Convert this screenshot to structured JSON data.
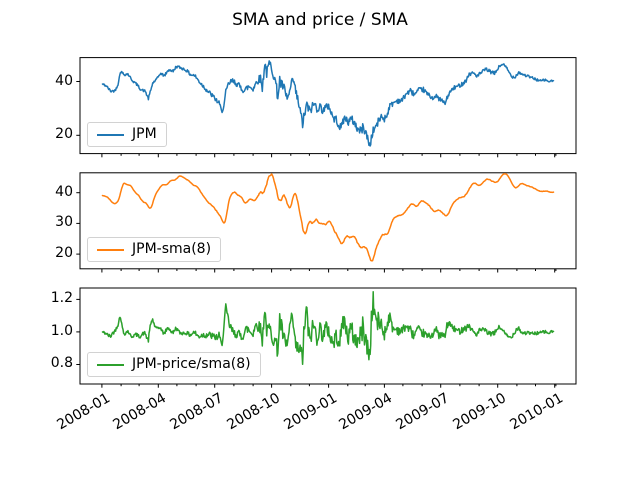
{
  "chart_data": {
    "type": "line",
    "title": "SMA and price / SMA",
    "xlabel": "",
    "ylabel": "",
    "grid": false,
    "legend_position": "lower left",
    "x_unit": "days since 2008-01-01, daily stock series 2008-01-02 to 2009-12-31",
    "xlim": [
      -35.4,
      765.4
    ],
    "xticks": [
      {
        "label": "2008-01",
        "day": 0
      },
      {
        "label": "2008-04",
        "day": 91
      },
      {
        "label": "2008-07",
        "day": 182
      },
      {
        "label": "2008-10",
        "day": 274
      },
      {
        "label": "2009-01",
        "day": 366
      },
      {
        "label": "2009-04",
        "day": 456
      },
      {
        "label": "2009-07",
        "day": 547
      },
      {
        "label": "2009-10",
        "day": 639
      },
      {
        "label": "2010-01",
        "day": 731
      }
    ],
    "minor_xtick_days": [
      31,
      60,
      121,
      152,
      213,
      244,
      305,
      335,
      397,
      425,
      486,
      517,
      578,
      609,
      670,
      700,
      733
    ],
    "subplots": [
      {
        "legend": "JPM",
        "color": "#1f77b4",
        "source": "price",
        "yticks": [
          "20",
          "40"
        ],
        "ylim": [
          13.2,
          48.9
        ],
        "price_waypoints": [
          [
            1,
            39.0
          ],
          [
            7,
            38.4
          ],
          [
            14,
            36.4
          ],
          [
            21,
            36.6
          ],
          [
            26,
            39.0
          ],
          [
            30,
            43.8
          ],
          [
            36,
            42.6
          ],
          [
            42,
            42.8
          ],
          [
            49,
            40.4
          ],
          [
            56,
            39.0
          ],
          [
            63,
            37.0
          ],
          [
            70,
            36.4
          ],
          [
            75,
            33.6
          ],
          [
            82,
            39.4
          ],
          [
            89,
            41.0
          ],
          [
            94,
            43.0
          ],
          [
            101,
            42.2
          ],
          [
            108,
            44.4
          ],
          [
            115,
            43.8
          ],
          [
            120,
            45.6
          ],
          [
            129,
            45.0
          ],
          [
            136,
            44.2
          ],
          [
            143,
            42.6
          ],
          [
            150,
            42.2
          ],
          [
            157,
            40.0
          ],
          [
            164,
            38.2
          ],
          [
            171,
            36.4
          ],
          [
            178,
            34.8
          ],
          [
            185,
            33.0
          ],
          [
            190,
            31.6
          ],
          [
            193,
            28.8
          ],
          [
            197,
            31.0
          ],
          [
            200,
            36.0
          ],
          [
            204,
            38.8
          ],
          [
            209,
            40.2
          ],
          [
            216,
            39.6
          ],
          [
            223,
            38.0
          ],
          [
            230,
            36.6
          ],
          [
            237,
            38.2
          ],
          [
            244,
            37.4
          ],
          [
            251,
            40.4
          ],
          [
            256,
            41.2
          ],
          [
            259,
            37.6
          ],
          [
            263,
            47.0
          ],
          [
            266,
            43.0
          ],
          [
            270,
            46.6
          ],
          [
            274,
            45.4
          ],
          [
            281,
            39.0
          ],
          [
            284,
            34.0
          ],
          [
            287,
            40.6
          ],
          [
            289,
            39.0
          ],
          [
            294,
            37.6
          ],
          [
            297,
            34.4
          ],
          [
            301,
            34.0
          ],
          [
            305,
            38.0
          ],
          [
            309,
            40.6
          ],
          [
            313,
            36.0
          ],
          [
            317,
            32.4
          ],
          [
            320,
            29.0
          ],
          [
            324,
            24.2
          ],
          [
            328,
            28.6
          ],
          [
            331,
            31.4
          ],
          [
            335,
            29.0
          ],
          [
            339,
            30.4
          ],
          [
            343,
            31.8
          ],
          [
            347,
            30.2
          ],
          [
            352,
            30.6
          ],
          [
            357,
            29.4
          ],
          [
            361,
            30.0
          ],
          [
            366,
            31.2
          ],
          [
            370,
            28.6
          ],
          [
            374,
            26.2
          ],
          [
            379,
            25.8
          ],
          [
            384,
            23.0
          ],
          [
            386,
            22.6
          ],
          [
            389,
            25.6
          ],
          [
            393,
            26.4
          ],
          [
            398,
            25.0
          ],
          [
            403,
            26.0
          ],
          [
            408,
            24.6
          ],
          [
            413,
            22.2
          ],
          [
            418,
            21.6
          ],
          [
            422,
            23.2
          ],
          [
            426,
            21.0
          ],
          [
            430,
            18.0
          ],
          [
            433,
            16.0
          ],
          [
            436,
            20.4
          ],
          [
            440,
            22.6
          ],
          [
            444,
            24.0
          ],
          [
            447,
            25.4
          ],
          [
            451,
            27.0
          ],
          [
            456,
            26.2
          ],
          [
            460,
            27.4
          ],
          [
            464,
            30.6
          ],
          [
            470,
            32.0
          ],
          [
            477,
            33.0
          ],
          [
            484,
            32.8
          ],
          [
            491,
            35.4
          ],
          [
            498,
            36.5
          ],
          [
            505,
            35.2
          ],
          [
            512,
            36.8
          ],
          [
            519,
            37.0
          ],
          [
            526,
            35.2
          ],
          [
            533,
            34.0
          ],
          [
            540,
            34.4
          ],
          [
            547,
            33.2
          ],
          [
            554,
            31.8
          ],
          [
            560,
            35.4
          ],
          [
            567,
            37.4
          ],
          [
            574,
            38.2
          ],
          [
            581,
            39.0
          ],
          [
            588,
            40.5
          ],
          [
            593,
            42.8
          ],
          [
            600,
            43.2
          ],
          [
            606,
            42.0
          ],
          [
            613,
            43.4
          ],
          [
            620,
            44.6
          ],
          [
            627,
            43.6
          ],
          [
            634,
            43.0
          ],
          [
            641,
            45.4
          ],
          [
            647,
            46.6
          ],
          [
            654,
            44.8
          ],
          [
            661,
            42.0
          ],
          [
            666,
            41.6
          ],
          [
            673,
            43.4
          ],
          [
            680,
            42.6
          ],
          [
            687,
            42.0
          ],
          [
            694,
            41.4
          ],
          [
            701,
            40.8
          ],
          [
            708,
            40.2
          ],
          [
            715,
            40.6
          ],
          [
            722,
            40.0
          ],
          [
            729,
            40.3
          ]
        ],
        "daily_noise_envelope": [
          [
            1,
            0.45
          ],
          [
            120,
            0.5
          ],
          [
            180,
            0.9
          ],
          [
            244,
            1.3
          ],
          [
            274,
            1.9
          ],
          [
            330,
            1.9
          ],
          [
            366,
            1.5
          ],
          [
            400,
            1.5
          ],
          [
            425,
            1.7
          ],
          [
            445,
            1.5
          ],
          [
            460,
            1.2
          ],
          [
            490,
            1.0
          ],
          [
            520,
            0.9
          ],
          [
            560,
            0.85
          ],
          [
            600,
            0.7
          ],
          [
            640,
            0.6
          ],
          [
            690,
            0.5
          ],
          [
            729,
            0.4
          ]
        ],
        "noise_seed": 42
      },
      {
        "legend": "JPM-sma(8)",
        "color": "#ff7f0e",
        "source": "sma",
        "window": 8,
        "yticks": [
          "20",
          "30",
          "40"
        ],
        "ylim": [
          15.2,
          46.5
        ]
      },
      {
        "legend": "JPM-price/sma(8)",
        "color": "#2ca02c",
        "source": "ratio",
        "yticks": [
          "0.8",
          "1.0",
          "1.2"
        ],
        "ylim": [
          0.68,
          1.27
        ]
      }
    ]
  }
}
